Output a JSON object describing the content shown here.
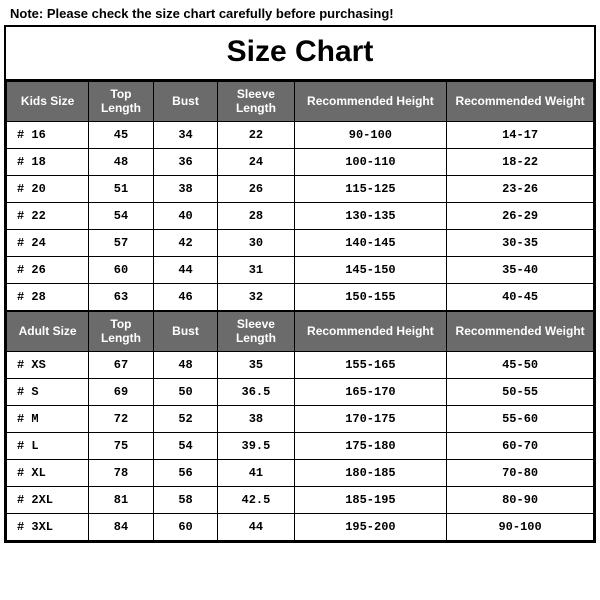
{
  "note": "Note: Please check the size chart carefully before purchasing!",
  "title": "Size Chart",
  "colors": {
    "header_bg": "#6b6b6b",
    "header_fg": "#ffffff",
    "border": "#000000",
    "cell_bg": "#ffffff",
    "cell_fg": "#000000"
  },
  "typography": {
    "title_fontsize": 30,
    "title_weight": 900,
    "header_fontsize": 12,
    "cell_fontsize": 12,
    "cell_font": "Courier New"
  },
  "columns": {
    "kids_size": "Kids Size",
    "adult_size": "Adult Size",
    "top_length": "Top Length",
    "bust": "Bust",
    "sleeve_length": "Sleeve Length",
    "rec_height": "Recommended Height",
    "rec_weight": "Recommended Weight"
  },
  "column_widths_pct": [
    14,
    11,
    11,
    13,
    26,
    25
  ],
  "kids": {
    "rows": [
      {
        "size": "# 16",
        "top": "45",
        "bust": "34",
        "sleeve": "22",
        "height": "90-100",
        "weight": "14-17"
      },
      {
        "size": "# 18",
        "top": "48",
        "bust": "36",
        "sleeve": "24",
        "height": "100-110",
        "weight": "18-22"
      },
      {
        "size": "# 20",
        "top": "51",
        "bust": "38",
        "sleeve": "26",
        "height": "115-125",
        "weight": "23-26"
      },
      {
        "size": "# 22",
        "top": "54",
        "bust": "40",
        "sleeve": "28",
        "height": "130-135",
        "weight": "26-29"
      },
      {
        "size": "# 24",
        "top": "57",
        "bust": "42",
        "sleeve": "30",
        "height": "140-145",
        "weight": "30-35"
      },
      {
        "size": "# 26",
        "top": "60",
        "bust": "44",
        "sleeve": "31",
        "height": "145-150",
        "weight": "35-40"
      },
      {
        "size": "# 28",
        "top": "63",
        "bust": "46",
        "sleeve": "32",
        "height": "150-155",
        "weight": "40-45"
      }
    ]
  },
  "adult": {
    "rows": [
      {
        "size": "# XS",
        "top": "67",
        "bust": "48",
        "sleeve": "35",
        "height": "155-165",
        "weight": "45-50"
      },
      {
        "size": "# S",
        "top": "69",
        "bust": "50",
        "sleeve": "36.5",
        "height": "165-170",
        "weight": "50-55"
      },
      {
        "size": "# M",
        "top": "72",
        "bust": "52",
        "sleeve": "38",
        "height": "170-175",
        "weight": "55-60"
      },
      {
        "size": "# L",
        "top": "75",
        "bust": "54",
        "sleeve": "39.5",
        "height": "175-180",
        "weight": "60-70"
      },
      {
        "size": "# XL",
        "top": "78",
        "bust": "56",
        "sleeve": "41",
        "height": "180-185",
        "weight": "70-80"
      },
      {
        "size": "# 2XL",
        "top": "81",
        "bust": "58",
        "sleeve": "42.5",
        "height": "185-195",
        "weight": "80-90"
      },
      {
        "size": "# 3XL",
        "top": "84",
        "bust": "60",
        "sleeve": "44",
        "height": "195-200",
        "weight": "90-100"
      }
    ]
  }
}
